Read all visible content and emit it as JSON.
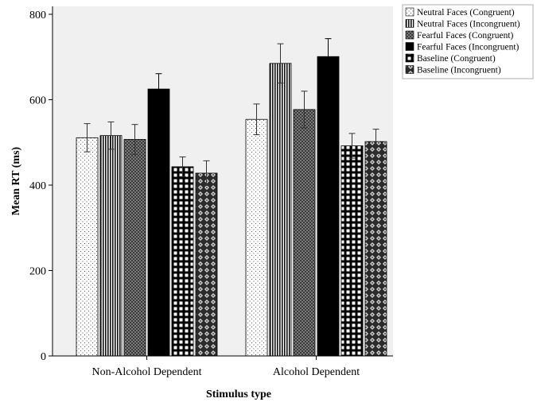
{
  "chart_data": {
    "type": "bar",
    "title": "",
    "xlabel": "Stimulus type",
    "ylabel": "Mean RT (ms)",
    "ylim": [
      0,
      800
    ],
    "yticks": [
      0,
      200,
      400,
      600,
      800
    ],
    "grid": false,
    "legend_position": "top-right",
    "categories": [
      "Non-Alcohol Dependent",
      "Alcohol Dependent"
    ],
    "series": [
      {
        "name": "Neutral Faces (Congruent)",
        "pattern": "dots",
        "values": [
          511,
          554
        ],
        "errors": [
          33,
          36
        ]
      },
      {
        "name": "Neutral Faces (Incongruent)",
        "pattern": "vlines",
        "values": [
          516,
          685
        ],
        "errors": [
          32,
          46
        ]
      },
      {
        "name": "Fearful Faces (Congruent)",
        "pattern": "crosshatch",
        "values": [
          507,
          577
        ],
        "errors": [
          35,
          43
        ]
      },
      {
        "name": "Fearful Faces (Incongruent)",
        "pattern": "solid",
        "values": [
          625,
          701
        ],
        "errors": [
          36,
          42
        ]
      },
      {
        "name": "Baseline (Congruent)",
        "pattern": "grid",
        "values": [
          443,
          492
        ],
        "errors": [
          23,
          29
        ]
      },
      {
        "name": "Baseline (Incongruent)",
        "pattern": "diamond",
        "values": [
          428,
          502
        ],
        "errors": [
          29,
          29
        ]
      }
    ]
  }
}
